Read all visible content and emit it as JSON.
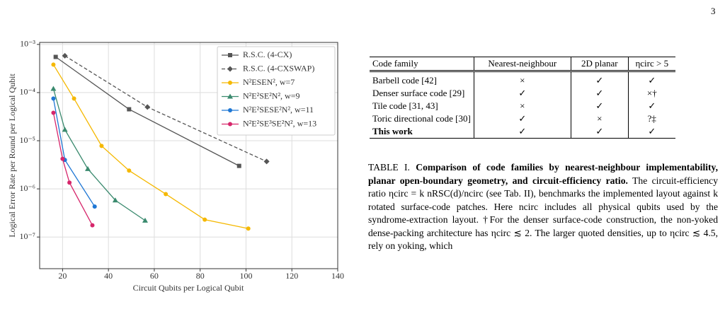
{
  "page_number": "3",
  "chart_data": {
    "type": "line",
    "xlabel": "Circuit Qubits per Logical Qubit",
    "ylabel": "Logical Error Rate per Round per Logical Qubit",
    "xlim": [
      10,
      140
    ],
    "xticks": [
      20,
      40,
      60,
      80,
      100,
      120,
      140
    ],
    "ylim": [
      2.2e-08,
      0.0011
    ],
    "log_y": true,
    "grid": true,
    "legend": "upper right",
    "yticks": [
      {
        "value": 1e-07,
        "label": "10⁻⁷"
      },
      {
        "value": 1e-06,
        "label": "10⁻⁶"
      },
      {
        "value": 1e-05,
        "label": "10⁻⁵"
      },
      {
        "value": 0.0001,
        "label": "10⁻⁴"
      },
      {
        "value": 0.001,
        "label": "10⁻³"
      }
    ],
    "series": [
      {
        "name": "R.S.C. (4-CX)",
        "color": "#555555",
        "marker": "s",
        "dash": false,
        "x": [
          17,
          49,
          97
        ],
        "values": [
          0.00055,
          4.5e-05,
          3e-06
        ]
      },
      {
        "name": "R.S.C. (4-CXSWAP)",
        "color": "#555555",
        "marker": "D",
        "dash": true,
        "x": [
          21,
          57,
          109
        ],
        "values": [
          0.00058,
          5e-05,
          3.7e-06
        ]
      },
      {
        "name": "N²ESEN², w=7",
        "color": "#f5b800",
        "marker": "o",
        "dash": false,
        "x": [
          16,
          25,
          37,
          49,
          65,
          82,
          101
        ],
        "values": [
          0.00038,
          7.5e-05,
          7.8e-06,
          2.4e-06,
          7.8e-07,
          2.3e-07,
          1.5e-07
        ]
      },
      {
        "name": "N²E²SE²N², w=9",
        "color": "#3a8a6e",
        "marker": "^",
        "dash": false,
        "x": [
          16,
          21,
          31,
          43,
          56
        ],
        "values": [
          0.00012,
          1.7e-05,
          2.6e-06,
          5.8e-07,
          2.2e-07
        ]
      },
      {
        "name": "N²E²SESE²N², w=11",
        "color": "#1f77d4",
        "marker": "o",
        "dash": false,
        "x": [
          16,
          21,
          34
        ],
        "values": [
          7.5e-05,
          4e-06,
          4.3e-07
        ]
      },
      {
        "name": "N²E²SE³SE²N², w=13",
        "color": "#d6266b",
        "marker": "o",
        "dash": false,
        "x": [
          16,
          20,
          23,
          33
        ],
        "values": [
          3.8e-05,
          4.2e-06,
          1.35e-06,
          1.75e-07
        ]
      }
    ]
  },
  "table": {
    "header": [
      "Code family",
      "Nearest-neighbour",
      "2D planar",
      "ηcirc > 5"
    ],
    "rows": [
      [
        "Barbell code [42]",
        "×",
        "✓",
        "✓"
      ],
      [
        "Denser surface code [29]",
        "✓",
        "✓",
        "×†"
      ],
      [
        "Tile code [31, 43]",
        "×",
        "✓",
        "✓"
      ],
      [
        "Toric directional code [30]",
        "✓",
        "×",
        "?‡"
      ],
      [
        "This work",
        "✓",
        "✓",
        "✓"
      ]
    ]
  },
  "caption": {
    "label": "TABLE I.",
    "bold": "Comparison of code families by nearest-neighbour implementability, planar open-boundary geometry, and circuit-efficiency ratio.",
    "text": "The circuit-efficiency ratio ηcirc = k nRSC(d)/ncirc (see Tab. II), benchmarks the implemented layout against k rotated surface-code patches. Here ncirc includes all physical qubits used by the syndrome-extraction layout. †For the denser surface-code construction, the non-yoked dense-packing architecture has ηcirc ≲ 2. The larger quoted densities, up to ηcirc ≲ 4.5, rely on yoking, which"
  }
}
